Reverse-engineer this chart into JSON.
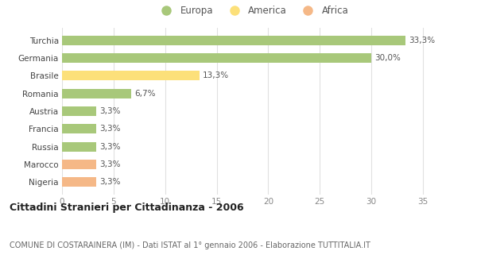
{
  "categories": [
    "Nigeria",
    "Marocco",
    "Russia",
    "Francia",
    "Austria",
    "Romania",
    "Brasile",
    "Germania",
    "Turchia"
  ],
  "values": [
    3.3,
    3.3,
    3.3,
    3.3,
    3.3,
    6.7,
    13.3,
    30.0,
    33.3
  ],
  "colors": [
    "#f5b887",
    "#f5b887",
    "#a8c87a",
    "#a8c87a",
    "#a8c87a",
    "#a8c87a",
    "#fce07a",
    "#a8c87a",
    "#a8c87a"
  ],
  "labels": [
    "3,3%",
    "3,3%",
    "3,3%",
    "3,3%",
    "3,3%",
    "6,7%",
    "13,3%",
    "30,0%",
    "33,3%"
  ],
  "legend_items": [
    {
      "label": "Europa",
      "color": "#a8c87a"
    },
    {
      "label": "America",
      "color": "#fce07a"
    },
    {
      "label": "Africa",
      "color": "#f5b887"
    }
  ],
  "xlim": [
    0,
    37
  ],
  "xticks": [
    0,
    5,
    10,
    15,
    20,
    25,
    30,
    35
  ],
  "title": "Cittadini Stranieri per Cittadinanza - 2006",
  "subtitle": "COMUNE DI COSTARAINERA (IM) - Dati ISTAT al 1° gennaio 2006 - Elaborazione TUTTITALIA.IT",
  "background_color": "#ffffff",
  "grid_color": "#e0e0e0",
  "bar_height": 0.55
}
